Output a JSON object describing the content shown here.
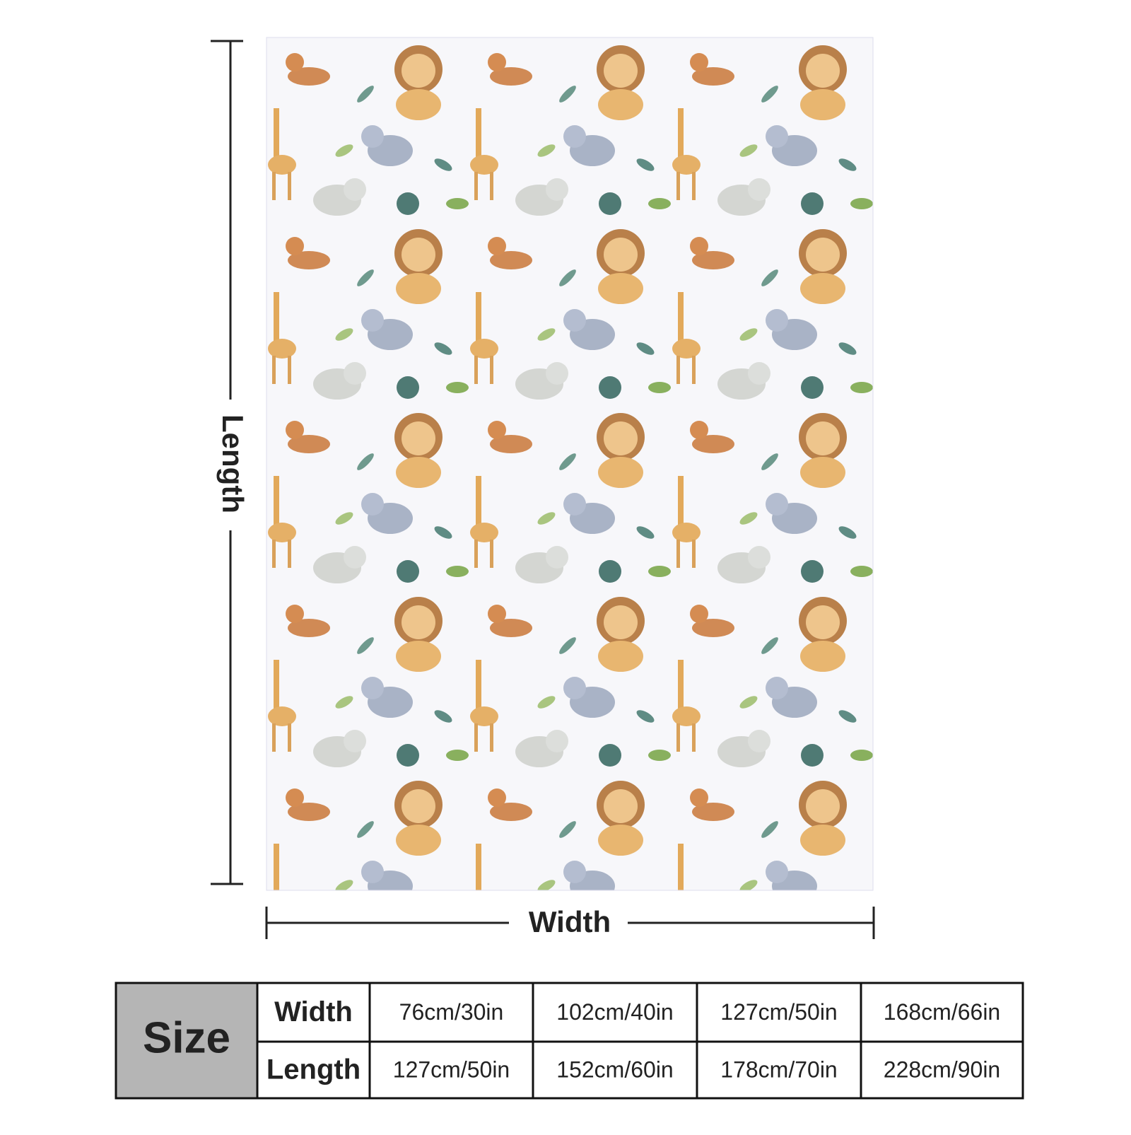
{
  "labels": {
    "length": "Length",
    "width": "Width"
  },
  "table": {
    "header": "Size",
    "rows": [
      [
        "Width",
        "76cm/30in",
        "102cm/40in",
        "127cm/50in",
        "168cm/66in"
      ],
      [
        "Length",
        "127cm/50in",
        "152cm/60in",
        "178cm/70in",
        "228cm/90in"
      ]
    ]
  }
}
